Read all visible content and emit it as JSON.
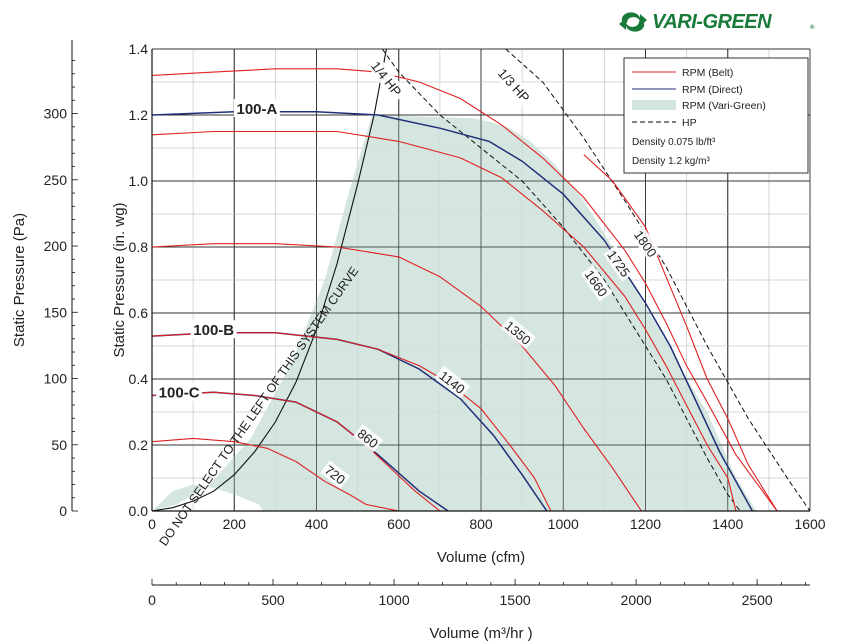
{
  "brand": {
    "name": "VARI-GREEN",
    "mark": "®",
    "color": "#1a7a3a"
  },
  "legend": {
    "items": [
      {
        "label": "RPM (Belt)",
        "style": "line",
        "color": "#e02020"
      },
      {
        "label": "RPM (Direct)",
        "style": "line",
        "color": "#1f2f78"
      },
      {
        "label": "RPM (Vari-Green)",
        "style": "area",
        "color": "#d3e5de"
      },
      {
        "label": "HP",
        "style": "dashed",
        "color": "#000000"
      }
    ],
    "density_lb": "Density  0.075 lb/ft³",
    "density_kg": "Density  1.2 kg/m³"
  },
  "chart_data": {
    "type": "line",
    "xlabel": "Volume (cfm)",
    "ylabel": "Static Pressure (in. wg)",
    "xlim": [
      0,
      1600
    ],
    "ylim": [
      0,
      1.4
    ],
    "x_ticks": [
      "0",
      "200",
      "400",
      "600",
      "800",
      "1000",
      "1200",
      "1400",
      "1600"
    ],
    "y_ticks": [
      "0.0",
      "0.2",
      "0.4",
      "0.6",
      "0.8",
      "1.0",
      "1.2",
      "1.4"
    ],
    "x2label": "Volume (m³/hr )",
    "x2_ticks": [
      "0",
      "500",
      "1000",
      "1500",
      "2000",
      "2500"
    ],
    "x2_tick_values_cfm": [
      0,
      294.3,
      588.6,
      882.9,
      1177.2,
      1471.5
    ],
    "y2label": "Static Pressure (Pa)",
    "y2_ticks": [
      "0",
      "50",
      "100",
      "150",
      "200",
      "250",
      "300"
    ],
    "y2_tick_values_inwg": [
      0,
      0.2007,
      0.4015,
      0.6022,
      0.803,
      1.0037,
      1.2044
    ],
    "vari_green_region": [
      [
        0,
        0
      ],
      [
        50,
        0.06
      ],
      [
        100,
        0.08
      ],
      [
        150,
        0.07
      ],
      [
        200,
        0.05
      ],
      [
        260,
        0.02
      ],
      [
        270,
        0.0
      ],
      [
        1470,
        0.0
      ],
      [
        1420,
        0.1
      ],
      [
        1350,
        0.3
      ],
      [
        1300,
        0.4
      ],
      [
        1260,
        0.5
      ],
      [
        1200,
        0.62
      ],
      [
        1120,
        0.8
      ],
      [
        1050,
        0.94
      ],
      [
        980,
        1.05
      ],
      [
        920,
        1.12
      ],
      [
        870,
        1.16
      ],
      [
        820,
        1.18
      ],
      [
        780,
        1.19
      ],
      [
        535,
        1.2
      ],
      [
        480,
        0.97
      ],
      [
        420,
        0.7
      ],
      [
        340,
        0.45
      ],
      [
        240,
        0.22
      ],
      [
        140,
        0.08
      ],
      [
        60,
        0.02
      ],
      [
        0,
        0
      ]
    ],
    "system_curve": {
      "label": "DO NOT SELECT TO THE LEFT OF THIS SYSTEM CURVE",
      "points": [
        [
          0,
          0
        ],
        [
          50,
          0.01
        ],
        [
          100,
          0.03
        ],
        [
          150,
          0.06
        ],
        [
          200,
          0.11
        ],
        [
          250,
          0.18
        ],
        [
          300,
          0.27
        ],
        [
          350,
          0.39
        ],
        [
          400,
          0.55
        ],
        [
          450,
          0.75
        ],
        [
          500,
          0.99
        ],
        [
          540,
          1.2
        ],
        [
          570,
          1.4
        ]
      ]
    },
    "hp_curves": [
      {
        "name": "1/4 HP",
        "points": [
          [
            560,
            1.4
          ],
          [
            600,
            1.33
          ],
          [
            700,
            1.2
          ],
          [
            800,
            1.1
          ],
          [
            900,
            1.0
          ],
          [
            1000,
            0.86
          ],
          [
            1100,
            0.7
          ],
          [
            1200,
            0.5
          ],
          [
            1250,
            0.4
          ],
          [
            1300,
            0.28
          ],
          [
            1350,
            0.16
          ],
          [
            1400,
            0.05
          ],
          [
            1430,
            0.0
          ]
        ]
      },
      {
        "name": "1/3 HP",
        "points": [
          [
            860,
            1.4
          ],
          [
            950,
            1.3
          ],
          [
            1050,
            1.13
          ],
          [
            1150,
            0.94
          ],
          [
            1250,
            0.74
          ],
          [
            1350,
            0.5
          ],
          [
            1450,
            0.28
          ],
          [
            1550,
            0.09
          ],
          [
            1600,
            0.0
          ]
        ]
      }
    ],
    "series": [
      {
        "name": "100-A",
        "kind": "direct",
        "points": [
          [
            0,
            1.2
          ],
          [
            200,
            1.21
          ],
          [
            400,
            1.21
          ],
          [
            550,
            1.2
          ],
          [
            700,
            1.16
          ],
          [
            820,
            1.12
          ],
          [
            900,
            1.06
          ],
          [
            1000,
            0.96
          ],
          [
            1100,
            0.82
          ],
          [
            1200,
            0.63
          ],
          [
            1260,
            0.5
          ],
          [
            1320,
            0.34
          ],
          [
            1380,
            0.18
          ],
          [
            1460,
            0.0
          ]
        ]
      },
      {
        "name": "100-B",
        "kind": "direct",
        "points": [
          [
            0,
            0.53
          ],
          [
            150,
            0.54
          ],
          [
            300,
            0.54
          ],
          [
            450,
            0.52
          ],
          [
            550,
            0.49
          ],
          [
            650,
            0.43
          ],
          [
            750,
            0.34
          ],
          [
            830,
            0.23
          ],
          [
            900,
            0.11
          ],
          [
            960,
            0.0
          ]
        ]
      },
      {
        "name": "100-C",
        "kind": "direct",
        "points": [
          [
            0,
            0.35
          ],
          [
            150,
            0.36
          ],
          [
            250,
            0.35
          ],
          [
            350,
            0.33
          ],
          [
            450,
            0.27
          ],
          [
            550,
            0.17
          ],
          [
            650,
            0.06
          ],
          [
            720,
            0.0
          ]
        ]
      },
      {
        "name": "1800",
        "kind": "belt",
        "points": [
          [
            1050,
            1.08
          ],
          [
            1120,
            1.0
          ],
          [
            1200,
            0.86
          ],
          [
            1300,
            0.56
          ],
          [
            1350,
            0.4
          ],
          [
            1400,
            0.28
          ],
          [
            1450,
            0.14
          ],
          [
            1520,
            0.0
          ]
        ]
      },
      {
        "name": "1725",
        "kind": "belt",
        "points": [
          [
            0,
            1.32
          ],
          [
            150,
            1.33
          ],
          [
            300,
            1.34
          ],
          [
            450,
            1.34
          ],
          [
            550,
            1.33
          ],
          [
            650,
            1.3
          ],
          [
            750,
            1.25
          ],
          [
            850,
            1.17
          ],
          [
            950,
            1.07
          ],
          [
            1050,
            0.95
          ],
          [
            1150,
            0.79
          ],
          [
            1200,
            0.69
          ],
          [
            1250,
            0.57
          ],
          [
            1300,
            0.44
          ],
          [
            1350,
            0.33
          ],
          [
            1420,
            0.17
          ],
          [
            1520,
            0.0
          ]
        ]
      },
      {
        "name": "1660",
        "kind": "belt",
        "points": [
          [
            0,
            1.14
          ],
          [
            150,
            1.15
          ],
          [
            300,
            1.15
          ],
          [
            450,
            1.15
          ],
          [
            600,
            1.12
          ],
          [
            750,
            1.07
          ],
          [
            850,
            1.01
          ],
          [
            950,
            0.91
          ],
          [
            1050,
            0.8
          ],
          [
            1150,
            0.65
          ],
          [
            1200,
            0.55
          ],
          [
            1250,
            0.44
          ],
          [
            1300,
            0.32
          ],
          [
            1350,
            0.2
          ],
          [
            1400,
            0.1
          ],
          [
            1420,
            0.0
          ]
        ]
      },
      {
        "name": "1350",
        "kind": "belt",
        "points": [
          [
            0,
            0.8
          ],
          [
            150,
            0.81
          ],
          [
            300,
            0.81
          ],
          [
            450,
            0.8
          ],
          [
            600,
            0.77
          ],
          [
            700,
            0.71
          ],
          [
            800,
            0.62
          ],
          [
            900,
            0.5
          ],
          [
            980,
            0.38
          ],
          [
            1050,
            0.25
          ],
          [
            1120,
            0.13
          ],
          [
            1190,
            0.0
          ]
        ]
      },
      {
        "name": "1140",
        "kind": "belt",
        "points": [
          [
            0,
            0.53
          ],
          [
            150,
            0.54
          ],
          [
            300,
            0.54
          ],
          [
            450,
            0.52
          ],
          [
            550,
            0.49
          ],
          [
            650,
            0.44
          ],
          [
            720,
            0.39
          ],
          [
            800,
            0.31
          ],
          [
            870,
            0.2
          ],
          [
            930,
            0.1
          ],
          [
            970,
            0.0
          ]
        ]
      },
      {
        "name": "860",
        "kind": "belt",
        "points": [
          [
            0,
            0.35
          ],
          [
            150,
            0.36
          ],
          [
            250,
            0.35
          ],
          [
            350,
            0.33
          ],
          [
            450,
            0.27
          ],
          [
            520,
            0.2
          ],
          [
            580,
            0.13
          ],
          [
            640,
            0.06
          ],
          [
            700,
            0.0
          ]
        ]
      },
      {
        "name": "720",
        "kind": "belt",
        "points": [
          [
            0,
            0.21
          ],
          [
            100,
            0.22
          ],
          [
            200,
            0.21
          ],
          [
            280,
            0.19
          ],
          [
            350,
            0.15
          ],
          [
            420,
            0.09
          ],
          [
            480,
            0.05
          ],
          [
            520,
            0.02
          ],
          [
            600,
            0.0
          ]
        ]
      }
    ],
    "curve_labels": [
      {
        "text": "100-A",
        "at": [
          255,
          1.22
        ],
        "angle": 0,
        "color": "#1f2f78",
        "bold": true
      },
      {
        "text": "100-B",
        "at": [
          150,
          0.55
        ],
        "angle": 0,
        "color": "#1f2f78",
        "bold": true
      },
      {
        "text": "100-C",
        "at": [
          66,
          0.36
        ],
        "angle": 0,
        "color": "#1f2f78",
        "bold": true
      },
      {
        "text": "1800",
        "at": [
          1200,
          0.81
        ],
        "angle": 55,
        "color": "#222222",
        "bold": false
      },
      {
        "text": "1725",
        "at": [
          1135,
          0.75
        ],
        "angle": 55,
        "color": "#222222",
        "bold": false
      },
      {
        "text": "1660",
        "at": [
          1080,
          0.69
        ],
        "angle": 55,
        "color": "#222222",
        "bold": false
      },
      {
        "text": "1350",
        "at": [
          890,
          0.54
        ],
        "angle": 40,
        "color": "#222222",
        "bold": false
      },
      {
        "text": "1140",
        "at": [
          730,
          0.39
        ],
        "angle": 38,
        "color": "#222222",
        "bold": false
      },
      {
        "text": "860",
        "at": [
          525,
          0.22
        ],
        "angle": 38,
        "color": "#222222",
        "bold": false
      },
      {
        "text": "720",
        "at": [
          445,
          0.11
        ],
        "angle": 38,
        "color": "#222222",
        "bold": false
      },
      {
        "text": "1/4 HP",
        "at": [
          570,
          1.31
        ],
        "angle": 52,
        "color": "#222222",
        "bold": false
      },
      {
        "text": "1/3 HP",
        "at": [
          880,
          1.29
        ],
        "angle": 48,
        "color": "#222222",
        "bold": false
      }
    ]
  }
}
